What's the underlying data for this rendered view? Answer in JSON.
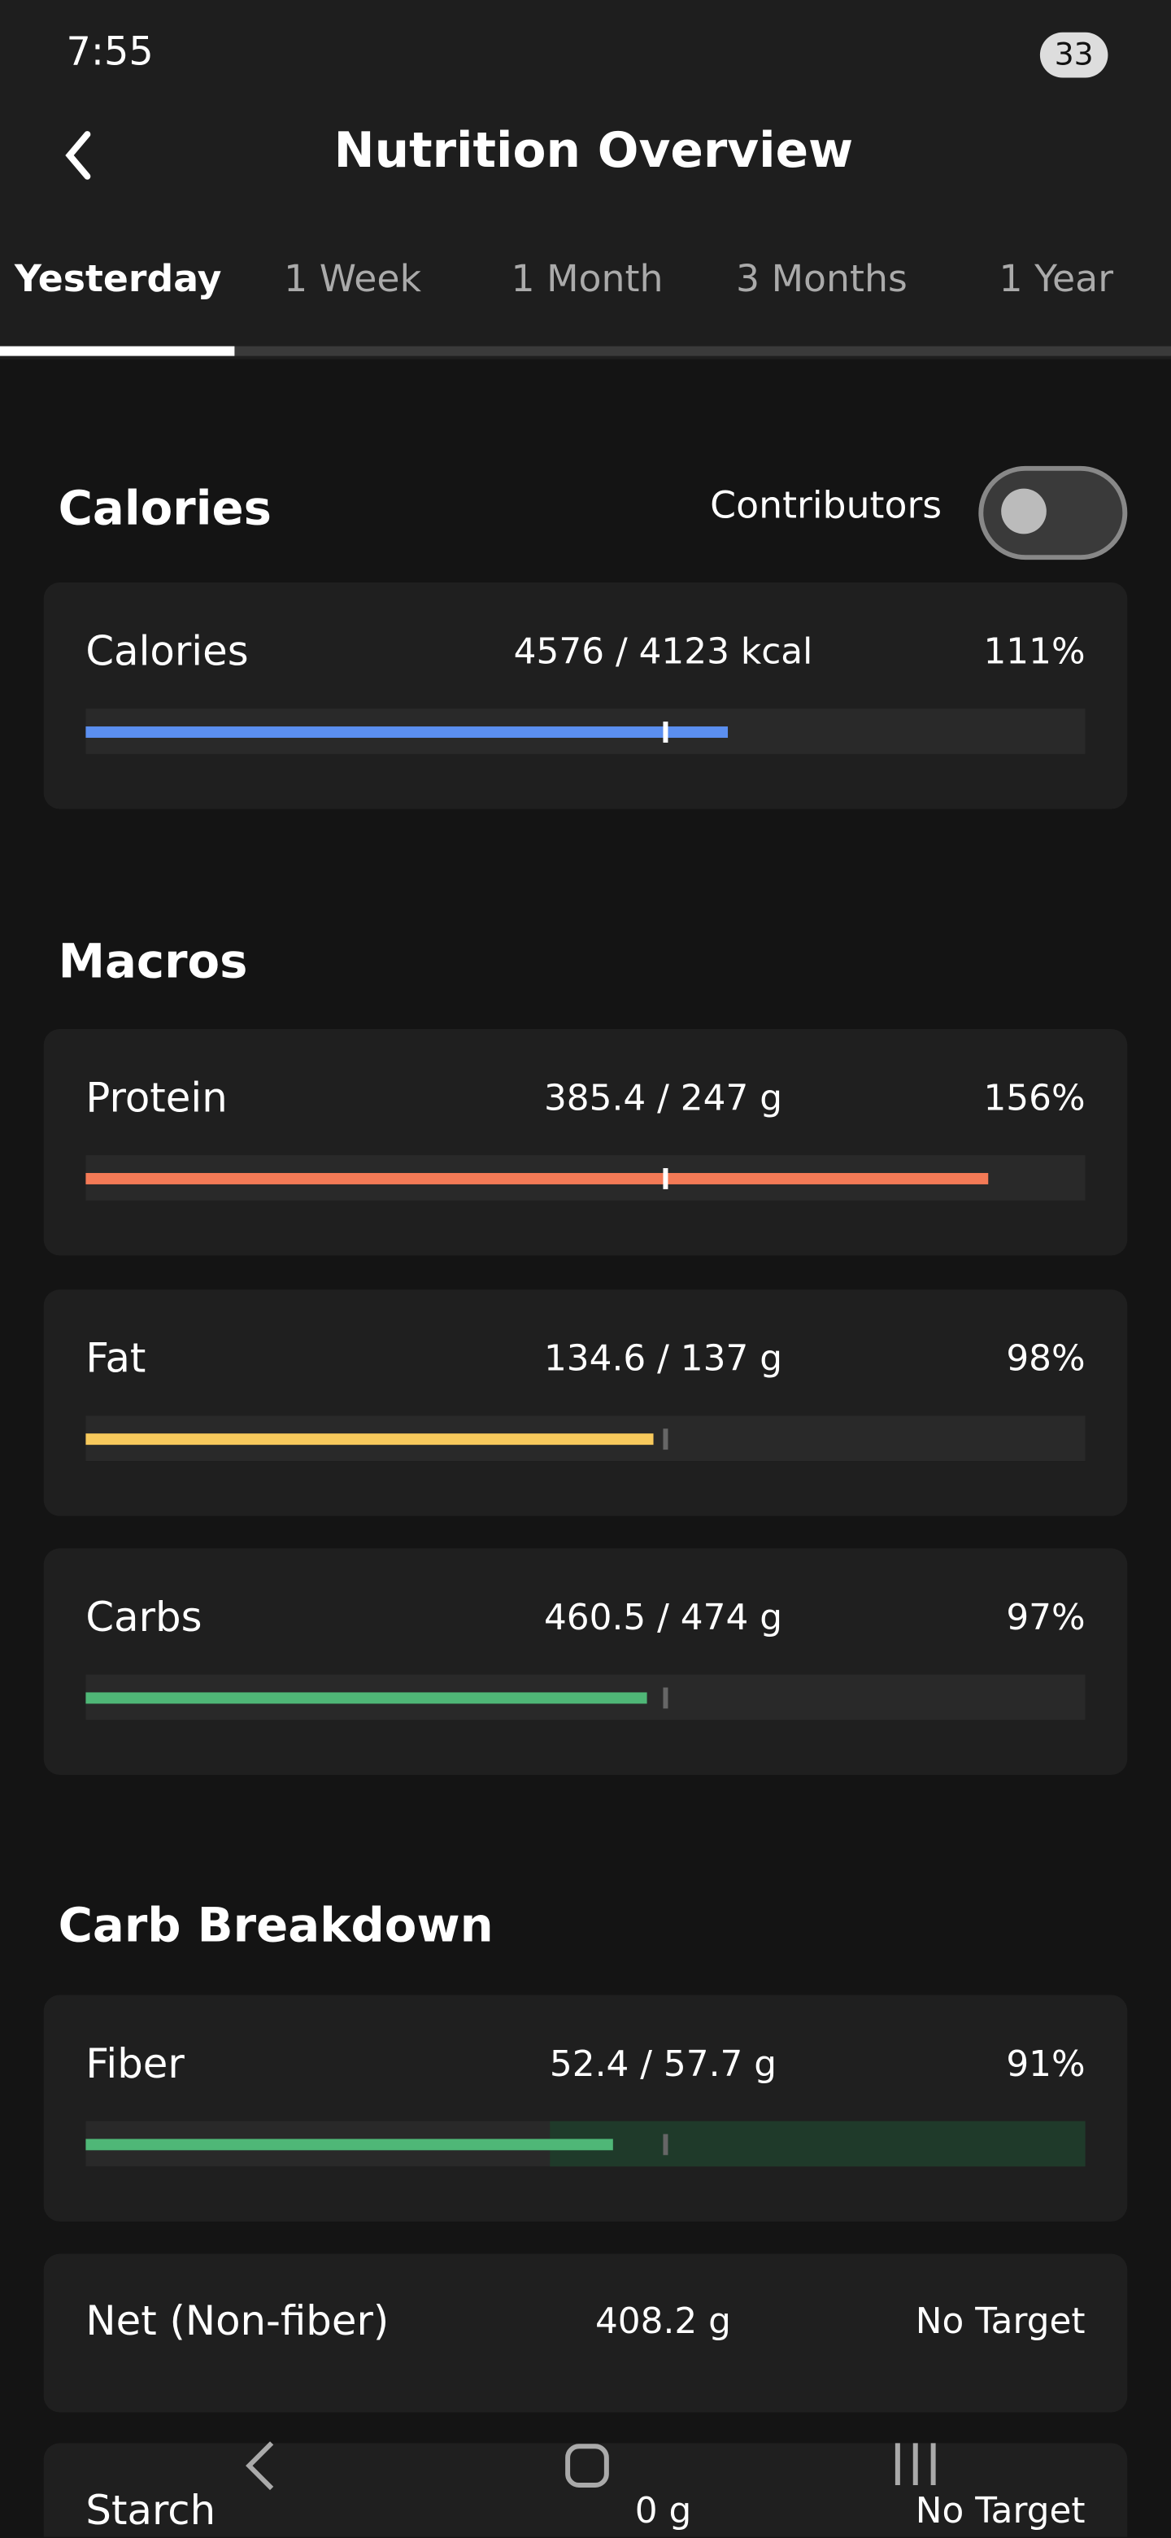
{
  "status": {
    "time": "7:55",
    "battery": "33"
  },
  "header": {
    "title": "Nutrition Overview"
  },
  "tabs": [
    "Yesterday",
    "1 Week",
    "1 Month",
    "3 Months",
    "1 Year"
  ],
  "sections": [
    {
      "title": "Calories",
      "toggle_label": "Contributors",
      "rows": [
        {
          "name": "Calories",
          "amount": "4576 / 4123 kcal",
          "percent": "111%",
          "color": "#5b8ff0"
        }
      ]
    },
    {
      "title": "Macros",
      "rows": [
        {
          "name": "Protein",
          "amount": "385.4 / 247 g",
          "percent": "156%",
          "color": "#f47a56"
        },
        {
          "name": "Fat",
          "amount": "134.6 / 137 g",
          "percent": "98%",
          "color": "#f7c95c"
        },
        {
          "name": "Carbs",
          "amount": "460.5 / 474 g",
          "percent": "97%",
          "color": "#4fb777"
        }
      ]
    },
    {
      "title": "Carb Breakdown",
      "rows": [
        {
          "name": "Fiber",
          "amount": "52.4 / 57.7 g",
          "percent": "91%",
          "color": "#4fb777"
        },
        {
          "name": "Net (Non-fiber)",
          "amount": "408.2 g",
          "percent": "No Target"
        },
        {
          "name": "Starch",
          "amount": "0 g",
          "percent": "No Target"
        }
      ]
    }
  ]
}
